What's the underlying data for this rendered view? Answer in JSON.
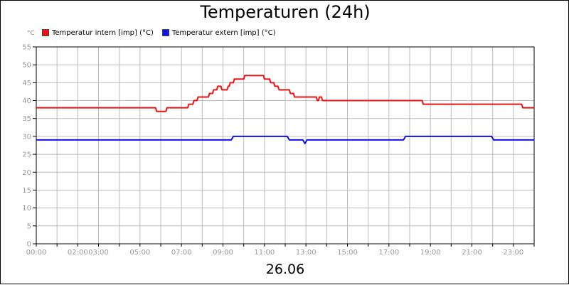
{
  "chart_data": {
    "type": "line",
    "title": "Temperaturen (24h)",
    "date_label": "26.06",
    "y_unit": "°C",
    "xlabel": "",
    "ylabel": "",
    "ylim": [
      0,
      55
    ],
    "xlim_hours": [
      0,
      24
    ],
    "grid": true,
    "legend_position": "top-left",
    "y_ticks": [
      0,
      5,
      10,
      15,
      20,
      25,
      30,
      35,
      40,
      45,
      50,
      55
    ],
    "x_ticks": [
      {
        "h": 0,
        "label": "00:00"
      },
      {
        "h": 2,
        "label": "02:00"
      },
      {
        "h": 3,
        "label": "03:00"
      },
      {
        "h": 5,
        "label": "05:00"
      },
      {
        "h": 7,
        "label": "07:00"
      },
      {
        "h": 9,
        "label": "09:00"
      },
      {
        "h": 11,
        "label": "11:00"
      },
      {
        "h": 13,
        "label": "13:00"
      },
      {
        "h": 15,
        "label": "15:00"
      },
      {
        "h": 17,
        "label": "17:00"
      },
      {
        "h": 19,
        "label": "19:00"
      },
      {
        "h": 21,
        "label": "21:00"
      },
      {
        "h": 23,
        "label": "23:00"
      }
    ],
    "series": [
      {
        "name": "Temperatur intern [imp] (°C)",
        "color": "#ee1111",
        "x": [
          0,
          5.75,
          5.8,
          6.25,
          6.3,
          7.3,
          7.35,
          7.55,
          7.6,
          7.75,
          7.8,
          8.3,
          8.35,
          8.5,
          8.55,
          8.7,
          8.75,
          8.9,
          8.95,
          9.2,
          9.25,
          9.3,
          9.35,
          9.5,
          9.55,
          9.7,
          9.75,
          10.0,
          10.05,
          10.95,
          11.0,
          11.25,
          11.3,
          11.45,
          11.5,
          11.65,
          11.7,
          11.85,
          11.9,
          12.2,
          12.25,
          12.4,
          12.45,
          12.6,
          12.65,
          13.5,
          13.55,
          13.6,
          13.65,
          13.75,
          13.8,
          18.6,
          18.65,
          23.4,
          23.45,
          24.0
        ],
        "y": [
          38,
          38,
          37,
          37,
          38,
          38,
          39,
          39,
          40,
          40,
          41,
          41,
          42,
          42,
          43,
          43,
          44,
          44,
          43,
          43,
          44,
          44,
          45,
          45,
          46,
          46,
          46,
          46,
          47,
          47,
          46,
          46,
          45,
          45,
          44,
          44,
          43,
          43,
          43,
          43,
          42,
          42,
          41,
          41,
          41,
          41,
          40,
          40,
          41,
          41,
          40,
          40,
          39,
          39,
          38,
          38
        ]
      },
      {
        "name": "Temperatur extern [imp] (°C)",
        "color": "#1111ee",
        "x": [
          0,
          9.4,
          9.5,
          12.1,
          12.2,
          12.85,
          12.95,
          13.05,
          17.7,
          17.8,
          21.95,
          22.05,
          24.0
        ],
        "y": [
          29,
          29,
          30,
          30,
          29,
          29,
          28,
          29,
          29,
          30,
          30,
          29,
          29
        ]
      }
    ]
  }
}
